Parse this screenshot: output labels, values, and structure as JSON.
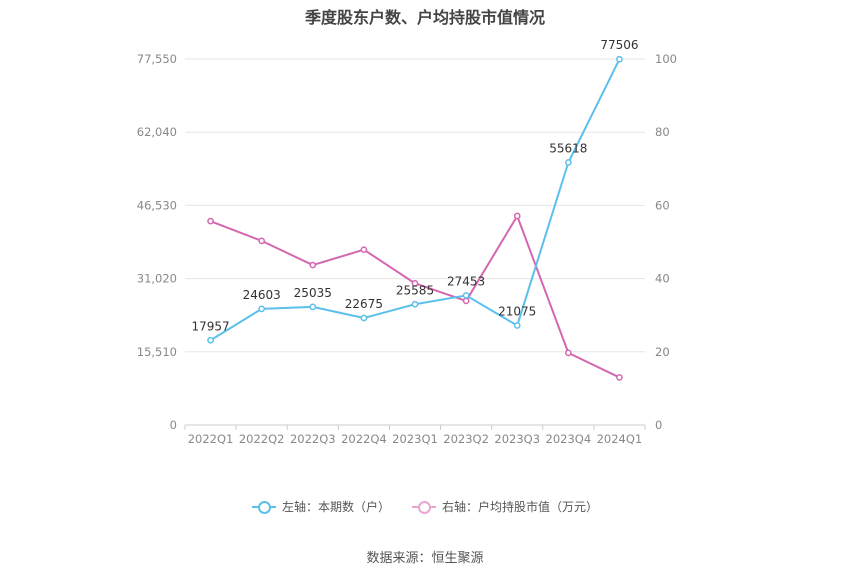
{
  "chart_data": {
    "type": "line",
    "title": "季度股东户数、户均持股市值情况",
    "categories": [
      "2022Q1",
      "2022Q2",
      "2022Q3",
      "2022Q4",
      "2023Q1",
      "2023Q2",
      "2023Q3",
      "2023Q4",
      "2024Q1"
    ],
    "left_axis": {
      "ticks": [
        "0",
        "15,510",
        "31,020",
        "46,530",
        "62,040",
        "77,550"
      ],
      "ylim": [
        0,
        77550
      ]
    },
    "right_axis": {
      "ticks": [
        "0",
        "20",
        "40",
        "60",
        "80",
        "100"
      ],
      "ylim": [
        0,
        100
      ]
    },
    "series": [
      {
        "name": "左轴：本期数（户）",
        "axis": "left",
        "color": "#5bc0eb",
        "values": [
          17957,
          24603,
          25035,
          22675,
          25585,
          27453,
          21075,
          55618,
          77506
        ],
        "labels": [
          "17957",
          "24603",
          "25035",
          "22675",
          "25585",
          "27453",
          "21075",
          "55618",
          "77506"
        ]
      },
      {
        "name": "右轴：户均持股市值（万元）",
        "axis": "right",
        "color": "#d467b0",
        "values": [
          55.7,
          50.3,
          43.7,
          47.9,
          38.7,
          33.9,
          57.1,
          19.7,
          13.0
        ]
      }
    ],
    "grid": true,
    "legend_position": "bottom"
  },
  "source": "数据来源：恒生聚源"
}
